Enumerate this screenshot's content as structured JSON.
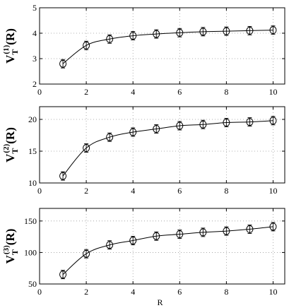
{
  "chart_data": [
    {
      "type": "line",
      "ylabel": {
        "main": "V",
        "sub": "T",
        "sup": "(1)",
        "arg": "(R)"
      },
      "xlabel": "",
      "xlim": [
        0,
        10.5
      ],
      "ylim": [
        2,
        5
      ],
      "xticks": [
        0,
        2,
        4,
        6,
        8,
        10
      ],
      "yticks": [
        2,
        3,
        4,
        5
      ],
      "grid": true,
      "series": [
        {
          "name": "",
          "x": [
            1,
            2,
            3,
            4,
            5,
            6,
            7,
            8,
            9,
            10
          ],
          "y": [
            2.8,
            3.52,
            3.77,
            3.9,
            3.97,
            4.02,
            4.06,
            4.08,
            4.1,
            4.12
          ],
          "marker": "circle-errorbar",
          "line": "fit"
        }
      ]
    },
    {
      "type": "line",
      "ylabel": {
        "main": "V",
        "sub": "T",
        "sup": "(2)",
        "arg": "(R)"
      },
      "xlabel": "",
      "xlim": [
        0,
        10.5
      ],
      "ylim": [
        10,
        22
      ],
      "xticks": [
        0,
        2,
        4,
        6,
        8,
        10
      ],
      "yticks": [
        10,
        15,
        20
      ],
      "grid": true,
      "series": [
        {
          "name": "",
          "x": [
            1,
            2,
            3,
            4,
            5,
            6,
            7,
            8,
            9,
            10
          ],
          "y": [
            11.1,
            15.5,
            17.2,
            18.0,
            18.5,
            19.0,
            19.2,
            19.5,
            19.6,
            19.8
          ],
          "marker": "circle-errorbar",
          "line": "fit"
        }
      ]
    },
    {
      "type": "line",
      "ylabel": {
        "main": "V",
        "sub": "T",
        "sup": "(3)",
        "arg": "(R)"
      },
      "xlabel": "R",
      "xlim": [
        0,
        10.5
      ],
      "ylim": [
        50,
        170
      ],
      "xticks": [
        0,
        2,
        4,
        6,
        8,
        10
      ],
      "yticks": [
        50,
        100,
        150
      ],
      "grid": true,
      "series": [
        {
          "name": "",
          "x": [
            1,
            2,
            3,
            4,
            5,
            6,
            7,
            8,
            9,
            10
          ],
          "y": [
            65,
            98,
            112,
            119,
            126,
            129,
            132,
            134,
            137,
            141
          ],
          "marker": "circle-errorbar",
          "line": "fit"
        }
      ]
    }
  ],
  "colors": {
    "line": "#000000",
    "grid": "#999999",
    "background": "#ffffff"
  }
}
